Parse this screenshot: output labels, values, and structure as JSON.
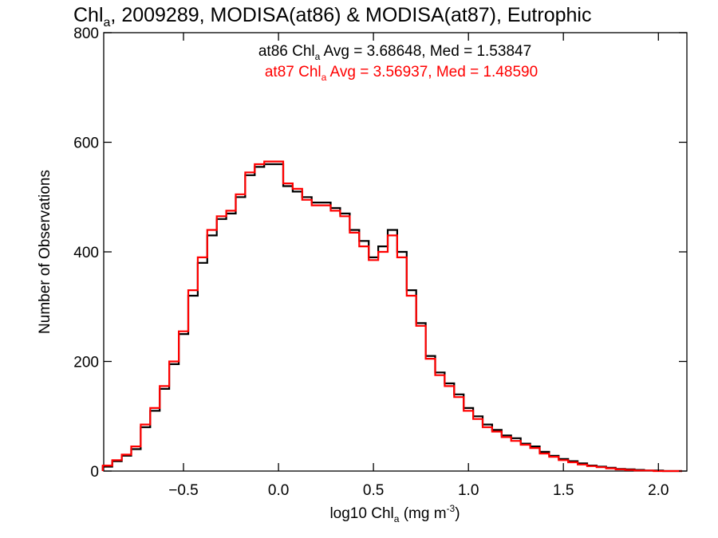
{
  "chart_data": {
    "type": "line",
    "title": {
      "pre": "Chl",
      "sub": "a",
      "post": ", 2009289, MODISA(at86) & MODISA(at87), Eutrophic"
    },
    "xlabel": {
      "pre": "log10 Chl",
      "sub": "a",
      "mid": " (mg m",
      "sup": "-3",
      "post": ")"
    },
    "ylabel": "Number of Observations",
    "xlim": [
      -0.92,
      2.15
    ],
    "ylim": [
      0,
      800
    ],
    "xticks": [
      -0.5,
      0.0,
      0.5,
      1.0,
      1.5,
      2.0
    ],
    "xtick_labels": [
      "−0.5",
      "0.0",
      "0.5",
      "1.0",
      "1.5",
      "2.0"
    ],
    "yticks": [
      0,
      200,
      400,
      600,
      800
    ],
    "ytick_labels": [
      "0",
      "200",
      "400",
      "600",
      "800"
    ],
    "annotations": [
      {
        "pre": "at86 Chl",
        "sub": "a",
        "post": " Avg = 3.68648, Med = 1.53847",
        "color": "#000000"
      },
      {
        "pre": "at87 Chl",
        "sub": "a",
        "post": " Avg = 3.56937, Med = 1.48590",
        "color": "#ff0000"
      }
    ],
    "grid": false,
    "step_histogram": true,
    "series": [
      {
        "color": "#000000",
        "x": [
          -0.9,
          -0.85,
          -0.8,
          -0.75,
          -0.7,
          -0.65,
          -0.6,
          -0.55,
          -0.5,
          -0.45,
          -0.4,
          -0.35,
          -0.3,
          -0.25,
          -0.2,
          -0.15,
          -0.1,
          -0.05,
          0.0,
          0.05,
          0.1,
          0.15,
          0.2,
          0.25,
          0.3,
          0.35,
          0.4,
          0.45,
          0.5,
          0.55,
          0.6,
          0.65,
          0.7,
          0.75,
          0.8,
          0.85,
          0.9,
          0.95,
          1.0,
          1.05,
          1.1,
          1.15,
          1.2,
          1.25,
          1.3,
          1.35,
          1.4,
          1.45,
          1.5,
          1.55,
          1.6,
          1.65,
          1.7,
          1.75,
          1.8,
          1.85,
          1.9,
          1.95,
          2.0,
          2.05,
          2.1
        ],
        "y": [
          8,
          18,
          28,
          40,
          80,
          110,
          150,
          195,
          250,
          320,
          380,
          430,
          460,
          470,
          500,
          540,
          555,
          560,
          560,
          520,
          510,
          500,
          490,
          490,
          480,
          470,
          440,
          420,
          390,
          410,
          440,
          400,
          330,
          270,
          210,
          180,
          160,
          140,
          115,
          100,
          85,
          75,
          65,
          60,
          50,
          45,
          35,
          28,
          22,
          18,
          14,
          10,
          8,
          6,
          4,
          3,
          2,
          1,
          1,
          0,
          0
        ]
      },
      {
        "color": "#ff0000",
        "x": [
          -0.9,
          -0.85,
          -0.8,
          -0.75,
          -0.7,
          -0.65,
          -0.6,
          -0.55,
          -0.5,
          -0.45,
          -0.4,
          -0.35,
          -0.3,
          -0.25,
          -0.2,
          -0.15,
          -0.1,
          -0.05,
          0.0,
          0.05,
          0.1,
          0.15,
          0.2,
          0.25,
          0.3,
          0.35,
          0.4,
          0.45,
          0.5,
          0.55,
          0.6,
          0.65,
          0.7,
          0.75,
          0.8,
          0.85,
          0.9,
          0.95,
          1.0,
          1.05,
          1.1,
          1.15,
          1.2,
          1.25,
          1.3,
          1.35,
          1.4,
          1.45,
          1.5,
          1.55,
          1.6,
          1.65,
          1.7,
          1.75,
          1.8,
          1.85,
          1.9,
          1.95,
          2.0,
          2.05,
          2.1
        ],
        "y": [
          10,
          20,
          30,
          45,
          85,
          115,
          155,
          200,
          255,
          330,
          390,
          440,
          465,
          475,
          505,
          545,
          560,
          565,
          565,
          525,
          515,
          495,
          485,
          485,
          475,
          465,
          435,
          410,
          385,
          400,
          430,
          390,
          320,
          265,
          205,
          175,
          155,
          135,
          110,
          95,
          80,
          72,
          62,
          55,
          48,
          42,
          32,
          26,
          20,
          16,
          12,
          9,
          7,
          5,
          3,
          2,
          1,
          1,
          0,
          0,
          0
        ]
      }
    ]
  }
}
